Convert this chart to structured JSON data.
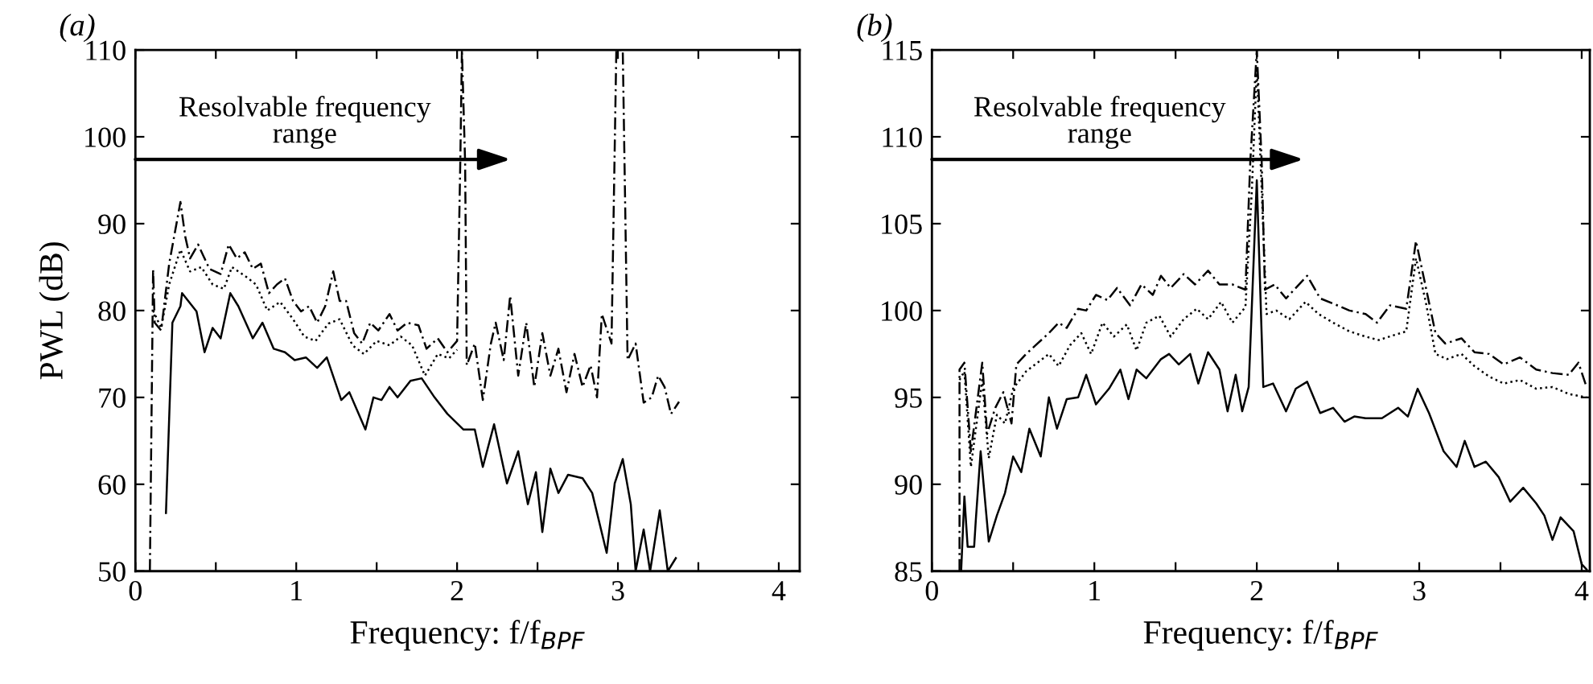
{
  "chart_data": [
    {
      "type": "line",
      "title": "(a)",
      "xlabel": "Frequency: f/f$_{BPF}$",
      "ylabel": "PWL (dB)",
      "xlim": [
        0,
        4.13
      ],
      "ylim": [
        50,
        110
      ],
      "xticks": [
        0,
        {
          "value": 0.5,
          "label": null
        },
        1,
        {
          "value": 1.5,
          "label": null
        },
        2,
        {
          "value": 2.5,
          "label": null
        },
        3,
        {
          "value": 3.5,
          "label": null
        },
        4
      ],
      "yticks": [
        50,
        60,
        70,
        80,
        90,
        100,
        110
      ],
      "grid": false,
      "legend": false,
      "annotations": [
        "Resolvable frequency\nrange"
      ],
      "series": [
        {
          "color": "#000000",
          "line_style": "dashed",
          "x": [
            0.09,
            0.11,
            0.12,
            0.16,
            0.21,
            0.28,
            0.31,
            0.34,
            0.39,
            0.46,
            0.53,
            0.58,
            0.63,
            0.68,
            0.73,
            0.78,
            0.83,
            0.88,
            0.93,
            0.98,
            1.03,
            1.08,
            1.13,
            1.18,
            1.23,
            1.27,
            1.31,
            1.36,
            1.41,
            1.46,
            1.51,
            1.58,
            1.63,
            1.69,
            1.76,
            1.81,
            1.88,
            1.94,
            2.0,
            2.02,
            2.03,
            2.05,
            2.06,
            2.11,
            2.16,
            2.21,
            2.24,
            2.29,
            2.33,
            2.38,
            2.43,
            2.48,
            2.53,
            2.58,
            2.63,
            2.68,
            2.73,
            2.78,
            2.83,
            2.87,
            2.9,
            2.96,
            2.99,
            3.03,
            3.06,
            3.11,
            3.16,
            3.21,
            3.25,
            3.29,
            3.33,
            3.38
          ],
          "values": [
            50,
            84.8,
            78.6,
            77.7,
            85.4,
            92.5,
            88.5,
            86,
            87.6,
            84.8,
            84.2,
            87.6,
            86,
            86.7,
            84.8,
            85.4,
            82,
            83,
            83.7,
            81.1,
            79.9,
            80.5,
            78.6,
            80.5,
            84.5,
            81.1,
            81.1,
            77.4,
            76.2,
            78.6,
            77.7,
            79.6,
            77.7,
            78.6,
            78.3,
            75.6,
            76.8,
            75.2,
            76.5,
            97.2,
            110,
            97,
            73.7,
            76.2,
            69.7,
            76.2,
            78.6,
            74.3,
            81.7,
            72.5,
            78.6,
            71.2,
            77.4,
            72.5,
            75.6,
            70.6,
            75,
            71.2,
            73.7,
            70,
            79.6,
            76.2,
            110,
            110,
            74.3,
            76.2,
            69.4,
            70,
            72.5,
            71.2,
            68.1,
            69.5
          ]
        },
        {
          "color": "#000000",
          "line_style": "dotted",
          "x": [
            0.11,
            0.16,
            0.21,
            0.28,
            0.34,
            0.41,
            0.48,
            0.55,
            0.6,
            0.68,
            0.75,
            0.82,
            0.9,
            0.98,
            1.05,
            1.12,
            1.2,
            1.27,
            1.35,
            1.42,
            1.5,
            1.58,
            1.65,
            1.72,
            1.8,
            1.88,
            1.95,
            2.0
          ],
          "values": [
            80,
            78,
            83,
            87,
            84.5,
            85,
            83,
            82.5,
            85,
            84,
            83,
            80,
            81,
            79,
            77,
            76.5,
            78.5,
            79,
            76,
            75,
            76.5,
            76,
            77,
            76,
            72.5,
            75,
            74.5,
            75.5
          ]
        },
        {
          "color": "#000000",
          "line_style": "solid",
          "x": [
            0.19,
            0.23,
            0.28,
            0.29,
            0.38,
            0.43,
            0.48,
            0.53,
            0.59,
            0.64,
            0.73,
            0.79,
            0.86,
            0.93,
            0.99,
            1.06,
            1.13,
            1.19,
            1.28,
            1.33,
            1.43,
            1.48,
            1.53,
            1.58,
            1.63,
            1.71,
            1.78,
            1.86,
            1.94,
            2.04,
            2.11,
            2.16,
            2.23,
            2.31,
            2.38,
            2.44,
            2.49,
            2.53,
            2.58,
            2.63,
            2.69,
            2.78,
            2.84,
            2.93,
            2.98,
            3.03,
            3.08,
            3.11,
            3.16,
            3.2,
            3.26,
            3.31,
            3.36
          ],
          "values": [
            56.7,
            78.6,
            80.5,
            82,
            79.9,
            75.2,
            78,
            76.8,
            82,
            80.5,
            76.8,
            78.6,
            75.6,
            75.2,
            74.3,
            74.6,
            73.4,
            74.6,
            69.7,
            70.6,
            66.3,
            70,
            69.7,
            71.2,
            70,
            71.9,
            72.2,
            70,
            68.1,
            66.3,
            66.3,
            62,
            66.9,
            60.1,
            63.8,
            57.7,
            61.4,
            54.5,
            61.8,
            59,
            61.1,
            60.7,
            59,
            52.1,
            60.1,
            62.9,
            57.7,
            50,
            54.8,
            50,
            57,
            50,
            51.5
          ]
        }
      ]
    },
    {
      "type": "line",
      "title": "(b)",
      "xlabel": "Frequency: f/f$_{BPF}$",
      "xlim": [
        0,
        4.05
      ],
      "ylim": [
        85,
        115
      ],
      "xticks": [
        0,
        {
          "value": 0.5,
          "label": null
        },
        1,
        {
          "value": 1.5,
          "label": null
        },
        2,
        {
          "value": 2.5,
          "label": null
        },
        3,
        {
          "value": 3.5,
          "label": null
        },
        4
      ],
      "yticks": [
        85,
        90,
        95,
        100,
        105,
        110,
        115
      ],
      "grid": false,
      "legend": false,
      "annotations": [
        "Resolvable frequency\nrange"
      ],
      "series": [
        {
          "color": "#000000",
          "line_style": "dashed",
          "x": [
            0.17,
            0.17,
            0.2,
            0.24,
            0.31,
            0.34,
            0.39,
            0.44,
            0.49,
            0.52,
            0.58,
            0.65,
            0.72,
            0.78,
            0.83,
            0.9,
            0.95,
            1.01,
            1.08,
            1.14,
            1.22,
            1.29,
            1.36,
            1.41,
            1.47,
            1.55,
            1.62,
            1.7,
            1.77,
            1.85,
            1.93,
            1.96,
            2.0,
            2.03,
            2.05,
            2.11,
            2.18,
            2.24,
            2.31,
            2.39,
            2.47,
            2.57,
            2.67,
            2.74,
            2.82,
            2.92,
            2.98,
            3.03,
            3.1,
            3.16,
            3.26,
            3.34,
            3.43,
            3.52,
            3.62,
            3.72,
            3.82,
            3.92,
            3.98,
            4.03
          ],
          "values": [
            85,
            96.6,
            97,
            91.9,
            97,
            92.9,
            94.4,
            95.3,
            93.5,
            96.9,
            97.5,
            98.1,
            98.7,
            99.3,
            99,
            100.1,
            100,
            100.9,
            100.6,
            101.3,
            100.3,
            101.5,
            100.9,
            102,
            101.3,
            102.1,
            101.5,
            102.3,
            101.5,
            101.5,
            101.2,
            108.6,
            115,
            108.6,
            101.2,
            101.5,
            100.7,
            101.3,
            102,
            100.7,
            100.4,
            100,
            99.8,
            99.3,
            100.3,
            100.1,
            104,
            101.8,
            98.7,
            98.1,
            98.4,
            97.6,
            97.5,
            96.9,
            97.3,
            96.6,
            96.4,
            96.3,
            97,
            95.6
          ]
        },
        {
          "color": "#000000",
          "line_style": "dotted",
          "x": [
            0.17,
            0.2,
            0.24,
            0.31,
            0.35,
            0.4,
            0.45,
            0.5,
            0.58,
            0.65,
            0.72,
            0.78,
            0.85,
            0.92,
            0.98,
            1.05,
            1.12,
            1.2,
            1.26,
            1.32,
            1.4,
            1.47,
            1.55,
            1.63,
            1.7,
            1.78,
            1.85,
            1.93,
            1.97,
            2.0,
            2.03,
            2.06,
            2.12,
            2.2,
            2.3,
            2.38,
            2.47,
            2.57,
            2.67,
            2.75,
            2.85,
            2.92,
            2.98,
            3.04,
            3.1,
            3.17,
            3.26,
            3.34,
            3.43,
            3.52,
            3.62,
            3.72,
            3.82,
            3.92,
            4.03
          ],
          "values": [
            96,
            96.5,
            91,
            96,
            91.5,
            94,
            93.5,
            95.5,
            96.5,
            97,
            97.5,
            96.8,
            98,
            98.7,
            97.5,
            99.3,
            98.5,
            99.2,
            97.7,
            99.3,
            99.7,
            98.5,
            99.5,
            100.1,
            99.5,
            100.5,
            99.3,
            100.2,
            107,
            114,
            107,
            99.8,
            100,
            99.5,
            100.5,
            99.8,
            99.3,
            98.8,
            98.5,
            98.3,
            98.6,
            98.8,
            103,
            100.5,
            97.5,
            97.2,
            97.5,
            96.8,
            96.2,
            95.8,
            96,
            95.5,
            95.6,
            95.2,
            95
          ]
        },
        {
          "color": "#000000",
          "line_style": "solid",
          "x": [
            0.18,
            0.2,
            0.22,
            0.26,
            0.27,
            0.3,
            0.35,
            0.4,
            0.45,
            0.5,
            0.55,
            0.6,
            0.67,
            0.72,
            0.77,
            0.83,
            0.9,
            0.95,
            1.01,
            1.09,
            1.16,
            1.21,
            1.26,
            1.32,
            1.41,
            1.46,
            1.52,
            1.59,
            1.64,
            1.7,
            1.77,
            1.82,
            1.87,
            1.91,
            1.95,
            2.0,
            2.04,
            2.1,
            2.18,
            2.24,
            2.31,
            2.39,
            2.47,
            2.54,
            2.6,
            2.67,
            2.77,
            2.87,
            2.93,
            2.99,
            3.06,
            3.15,
            3.23,
            3.28,
            3.34,
            3.41,
            3.49,
            3.56,
            3.64,
            3.72,
            3.77,
            3.82,
            3.87,
            3.95,
            4.0,
            4.03
          ],
          "values": [
            85,
            89.3,
            86.4,
            86.4,
            87.9,
            91.9,
            86.7,
            88.2,
            89.5,
            91.6,
            90.7,
            93.2,
            91.6,
            95,
            93.2,
            94.9,
            95,
            96.3,
            94.6,
            95.5,
            96.6,
            94.9,
            96.6,
            96.1,
            97.2,
            97.5,
            96.9,
            97.5,
            95.8,
            97.6,
            96.6,
            94.2,
            96.3,
            94.2,
            95.6,
            107.5,
            95.6,
            95.8,
            94.2,
            95.5,
            95.9,
            94.1,
            94.4,
            93.6,
            93.9,
            93.8,
            93.8,
            94.4,
            93.9,
            95.5,
            94.1,
            91.9,
            91,
            92.5,
            91,
            91.3,
            90.4,
            89,
            89.8,
            88.9,
            88.2,
            86.8,
            88.1,
            87.3,
            85.4,
            85.1
          ]
        }
      ]
    }
  ]
}
